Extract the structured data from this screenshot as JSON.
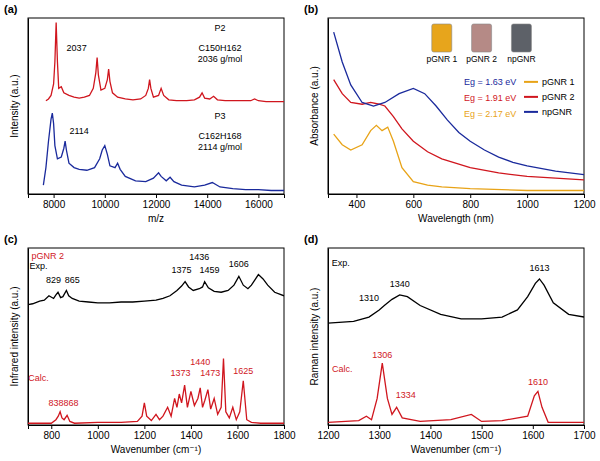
{
  "chart_data": [
    {
      "type": "line",
      "panel": "(a)",
      "x_label": "m/z",
      "y_label": "Intensity (a.u.)",
      "xlim": [
        7000,
        17000
      ],
      "xticks": [
        8000,
        10000,
        12000,
        14000,
        16000
      ],
      "ylim": [
        0,
        2
      ],
      "tick_labels": "x",
      "series": [
        {
          "color": "#d0161e",
          "x": [
            7700,
            7800,
            7900,
            8000,
            8050,
            8100,
            8150,
            8200,
            8300,
            8400,
            8600,
            8800,
            9000,
            9200,
            9400,
            9550,
            9650,
            9700,
            9750,
            9850,
            10000,
            10100,
            10150,
            10200,
            10300,
            10500,
            10800,
            11100,
            11400,
            11600,
            11700,
            11750,
            11800,
            11900,
            12100,
            12200,
            12300,
            12500,
            12800,
            13200,
            13500,
            13700,
            13800,
            13900,
            14100,
            14250,
            14400,
            14700,
            15200,
            15700,
            15850,
            16000,
            16300,
            16700,
            17000
          ],
          "values": [
            1.06,
            1.08,
            1.12,
            1.25,
            1.5,
            1.95,
            1.5,
            1.2,
            1.22,
            1.15,
            1.12,
            1.1,
            1.09,
            1.1,
            1.12,
            1.2,
            1.38,
            1.55,
            1.35,
            1.18,
            1.2,
            1.3,
            1.42,
            1.28,
            1.15,
            1.1,
            1.08,
            1.07,
            1.08,
            1.12,
            1.2,
            1.3,
            1.2,
            1.1,
            1.12,
            1.2,
            1.12,
            1.07,
            1.06,
            1.06,
            1.07,
            1.1,
            1.15,
            1.09,
            1.08,
            1.11,
            1.07,
            1.06,
            1.06,
            1.06,
            1.08,
            1.06,
            1.05,
            1.05,
            1.05
          ]
        },
        {
          "color": "#1a2a9c",
          "x": [
            7600,
            7700,
            7800,
            7900,
            7950,
            8000,
            8050,
            8150,
            8300,
            8400,
            8450,
            8500,
            8600,
            8800,
            9000,
            9300,
            9600,
            9800,
            9900,
            10000,
            10100,
            10200,
            10400,
            10500,
            10600,
            10800,
            11200,
            11600,
            11900,
            12100,
            12200,
            12400,
            12550,
            12700,
            13000,
            13500,
            13900,
            14200,
            14500,
            15000,
            15500,
            16000,
            16500,
            17000
          ],
          "values": [
            0.1,
            0.3,
            0.6,
            0.85,
            0.92,
            0.8,
            0.55,
            0.4,
            0.42,
            0.52,
            0.6,
            0.5,
            0.35,
            0.3,
            0.28,
            0.27,
            0.3,
            0.4,
            0.5,
            0.55,
            0.45,
            0.32,
            0.3,
            0.35,
            0.28,
            0.2,
            0.15,
            0.14,
            0.18,
            0.24,
            0.2,
            0.15,
            0.19,
            0.14,
            0.1,
            0.08,
            0.1,
            0.13,
            0.08,
            0.06,
            0.05,
            0.05,
            0.04,
            0.04
          ]
        }
      ],
      "annotations": [
        {
          "text": "2037",
          "x": 8900,
          "y": 1.62,
          "color": "#000000"
        },
        {
          "text": "P2",
          "x": 14500,
          "y": 1.85,
          "color": "#000000"
        },
        {
          "text": "C150H162",
          "x": 14500,
          "y": 1.62,
          "color": "#000000"
        },
        {
          "text": "2036 g/mol",
          "x": 14500,
          "y": 1.5,
          "color": "#000000"
        },
        {
          "text": "2114",
          "x": 9000,
          "y": 0.68,
          "color": "#000000"
        },
        {
          "text": "P3",
          "x": 14500,
          "y": 0.85,
          "color": "#000000"
        },
        {
          "text": "C162H168",
          "x": 14500,
          "y": 0.62,
          "color": "#000000"
        },
        {
          "text": "2114 g/mol",
          "x": 14500,
          "y": 0.5,
          "color": "#000000"
        }
      ]
    },
    {
      "type": "line",
      "panel": "(b)",
      "x_label": "Wavelength (nm)",
      "y_label": "Absorbance (a.u.)",
      "xlim": [
        300,
        1200
      ],
      "xticks": [
        400,
        600,
        800,
        1000,
        1200
      ],
      "ylim": [
        0,
        1
      ],
      "tick_labels": "x",
      "legend": "right",
      "series": [
        {
          "name": "pGNR 1",
          "color": "#e8a317",
          "x": [
            320,
            350,
            380,
            420,
            450,
            470,
            490,
            510,
            530,
            560,
            600,
            650,
            700,
            800,
            1000,
            1200
          ],
          "values": [
            0.34,
            0.28,
            0.25,
            0.28,
            0.36,
            0.39,
            0.36,
            0.38,
            0.3,
            0.15,
            0.07,
            0.05,
            0.04,
            0.03,
            0.02,
            0.02
          ]
        },
        {
          "name": "pGNR 2",
          "color": "#d0161e",
          "x": [
            320,
            350,
            380,
            420,
            450,
            480,
            500,
            530,
            560,
            600,
            650,
            700,
            800,
            900,
            1000,
            1100,
            1200
          ],
          "values": [
            0.65,
            0.57,
            0.52,
            0.51,
            0.52,
            0.51,
            0.5,
            0.44,
            0.37,
            0.3,
            0.24,
            0.2,
            0.15,
            0.12,
            0.1,
            0.09,
            0.08
          ]
        },
        {
          "name": "npGNR",
          "color": "#1a2a9c",
          "x": [
            320,
            350,
            380,
            420,
            460,
            500,
            550,
            600,
            640,
            680,
            720,
            760,
            800,
            850,
            900,
            950,
            1000,
            1100,
            1200
          ],
          "values": [
            0.92,
            0.75,
            0.62,
            0.52,
            0.5,
            0.52,
            0.57,
            0.6,
            0.57,
            0.5,
            0.42,
            0.35,
            0.3,
            0.25,
            0.21,
            0.18,
            0.16,
            0.13,
            0.11
          ]
        }
      ],
      "annotations": [
        {
          "text": "Eg = 1.63 eV",
          "x": 870,
          "y": 0.62,
          "color": "#1a2a9c"
        },
        {
          "text": "Eg = 1.91 eV",
          "x": 870,
          "y": 0.53,
          "color": "#d0161e"
        },
        {
          "text": "Eg = 2.17 eV",
          "x": 870,
          "y": 0.44,
          "color": "#e8a317"
        }
      ],
      "vials": [
        {
          "label": "pGNR 1",
          "color": "#e7a51c",
          "x": 700
        },
        {
          "label": "pGNR 2",
          "color": "#b58a86",
          "x": 840
        },
        {
          "label": "npGNR",
          "color": "#5d6168",
          "x": 980
        }
      ]
    },
    {
      "type": "line",
      "panel": "(c)",
      "x_label": "Wavenumber (cm⁻¹)",
      "y_label": "Infrared intensity (a.u.)",
      "xlim": [
        700,
        1800
      ],
      "xticks": [
        800,
        1000,
        1200,
        1400,
        1600,
        1800
      ],
      "ylim": [
        0,
        2
      ],
      "tick_labels": "x",
      "series": [
        {
          "color": "#000000",
          "x": [
            700,
            720,
            750,
            770,
            790,
            810,
            820,
            829,
            840,
            850,
            865,
            875,
            890,
            920,
            960,
            1000,
            1050,
            1100,
            1150,
            1200,
            1250,
            1280,
            1310,
            1340,
            1360,
            1375,
            1390,
            1410,
            1436,
            1450,
            1459,
            1475,
            1500,
            1530,
            1560,
            1585,
            1606,
            1625,
            1645,
            1660,
            1675,
            1690,
            1710,
            1730,
            1760,
            1800
          ],
          "values": [
            1.36,
            1.37,
            1.4,
            1.41,
            1.46,
            1.43,
            1.47,
            1.5,
            1.44,
            1.45,
            1.52,
            1.46,
            1.43,
            1.4,
            1.39,
            1.38,
            1.38,
            1.39,
            1.39,
            1.4,
            1.41,
            1.43,
            1.46,
            1.52,
            1.57,
            1.62,
            1.56,
            1.52,
            1.54,
            1.56,
            1.62,
            1.55,
            1.51,
            1.5,
            1.52,
            1.58,
            1.68,
            1.58,
            1.54,
            1.58,
            1.64,
            1.7,
            1.65,
            1.58,
            1.5,
            1.46
          ]
        },
        {
          "color": "#d0161e",
          "x": [
            700,
            800,
            820,
            830,
            838,
            846,
            855,
            868,
            880,
            900,
            1000,
            1100,
            1170,
            1190,
            1200,
            1210,
            1230,
            1250,
            1265,
            1280,
            1300,
            1315,
            1330,
            1340,
            1350,
            1360,
            1373,
            1385,
            1400,
            1415,
            1430,
            1440,
            1450,
            1460,
            1473,
            1485,
            1500,
            1515,
            1530,
            1540,
            1550,
            1565,
            1580,
            1595,
            1610,
            1625,
            1640,
            1660,
            1700,
            1800
          ],
          "values": [
            0.02,
            0.02,
            0.06,
            0.1,
            0.15,
            0.08,
            0.06,
            0.11,
            0.04,
            0.02,
            0.03,
            0.03,
            0.04,
            0.1,
            0.25,
            0.1,
            0.05,
            0.12,
            0.06,
            0.1,
            0.2,
            0.1,
            0.3,
            0.2,
            0.35,
            0.25,
            0.45,
            0.2,
            0.38,
            0.22,
            0.3,
            0.42,
            0.2,
            0.28,
            0.4,
            0.18,
            0.3,
            0.12,
            0.2,
            0.75,
            0.15,
            0.08,
            0.2,
            0.06,
            0.15,
            0.5,
            0.06,
            0.03,
            0.02,
            0.02
          ]
        }
      ],
      "annotations": [
        {
          "text": "pGNR 2",
          "x": 785,
          "y": 1.88,
          "color": "#d0161e"
        },
        {
          "text": "Exp.",
          "x": 745,
          "y": 1.76,
          "color": "#000000"
        },
        {
          "text": "829",
          "x": 810,
          "y": 1.6,
          "color": "#000000"
        },
        {
          "text": "865",
          "x": 890,
          "y": 1.6,
          "color": "#000000"
        },
        {
          "text": "1375",
          "x": 1360,
          "y": 1.72,
          "color": "#000000"
        },
        {
          "text": "1436",
          "x": 1436,
          "y": 1.86,
          "color": "#000000"
        },
        {
          "text": "1459",
          "x": 1480,
          "y": 1.72,
          "color": "#000000"
        },
        {
          "text": "1606",
          "x": 1606,
          "y": 1.78,
          "color": "#000000"
        },
        {
          "text": "Calc.",
          "x": 745,
          "y": 0.5,
          "color": "#d0161e"
        },
        {
          "text": "838",
          "x": 820,
          "y": 0.22,
          "color": "#d0161e"
        },
        {
          "text": "868",
          "x": 885,
          "y": 0.22,
          "color": "#d0161e"
        },
        {
          "text": "1373",
          "x": 1355,
          "y": 0.55,
          "color": "#d0161e"
        },
        {
          "text": "1440",
          "x": 1440,
          "y": 0.68,
          "color": "#d0161e"
        },
        {
          "text": "1473",
          "x": 1483,
          "y": 0.55,
          "color": "#d0161e"
        },
        {
          "text": "1625",
          "x": 1625,
          "y": 0.58,
          "color": "#d0161e"
        }
      ]
    },
    {
      "type": "line",
      "panel": "(d)",
      "x_label": "Wavenumber (cm⁻¹)",
      "y_label": "Raman intensity (a.u.)",
      "xlim": [
        1200,
        1700
      ],
      "xticks": [
        1200,
        1300,
        1400,
        1500,
        1600,
        1700
      ],
      "ylim": [
        0,
        2
      ],
      "tick_labels": "x",
      "series": [
        {
          "color": "#000000",
          "x": [
            1200,
            1250,
            1280,
            1300,
            1310,
            1325,
            1340,
            1355,
            1380,
            1420,
            1460,
            1500,
            1540,
            1570,
            1590,
            1605,
            1613,
            1622,
            1640,
            1670,
            1700
          ],
          "values": [
            1.15,
            1.17,
            1.22,
            1.3,
            1.35,
            1.42,
            1.47,
            1.45,
            1.35,
            1.25,
            1.2,
            1.2,
            1.22,
            1.3,
            1.45,
            1.6,
            1.65,
            1.58,
            1.38,
            1.25,
            1.22
          ]
        },
        {
          "color": "#d0161e",
          "x": [
            1200,
            1260,
            1275,
            1285,
            1296,
            1306,
            1316,
            1325,
            1334,
            1345,
            1380,
            1440,
            1480,
            1500,
            1540,
            1590,
            1603,
            1610,
            1618,
            1630,
            1700
          ],
          "values": [
            0.03,
            0.05,
            0.1,
            0.06,
            0.3,
            0.7,
            0.3,
            0.12,
            0.2,
            0.08,
            0.04,
            0.06,
            0.12,
            0.04,
            0.05,
            0.1,
            0.33,
            0.38,
            0.2,
            0.03,
            0.03
          ]
        }
      ],
      "annotations": [
        {
          "text": "Exp.",
          "x": 1225,
          "y": 1.8,
          "color": "#000000"
        },
        {
          "text": "1310",
          "x": 1280,
          "y": 1.4,
          "color": "#000000"
        },
        {
          "text": "1340",
          "x": 1340,
          "y": 1.56,
          "color": "#000000"
        },
        {
          "text": "1613",
          "x": 1613,
          "y": 1.74,
          "color": "#000000"
        },
        {
          "text": "Calc.",
          "x": 1228,
          "y": 0.6,
          "color": "#d0161e"
        },
        {
          "text": "1306",
          "x": 1306,
          "y": 0.76,
          "color": "#d0161e"
        },
        {
          "text": "1334",
          "x": 1352,
          "y": 0.3,
          "color": "#d0161e"
        },
        {
          "text": "1610",
          "x": 1610,
          "y": 0.45,
          "color": "#d0161e"
        }
      ]
    }
  ]
}
